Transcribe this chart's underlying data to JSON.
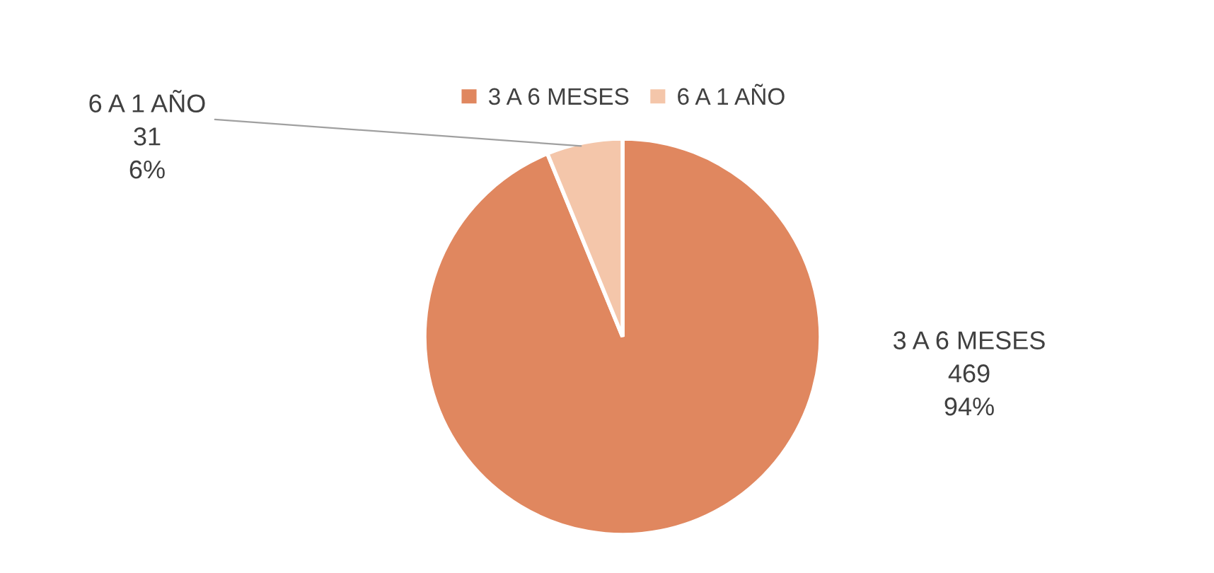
{
  "chart_data": {
    "type": "pie",
    "categories": [
      "3 A 6 MESES",
      "6 A 1 AÑO"
    ],
    "values": [
      469,
      31
    ],
    "colors": [
      "#e0875f",
      "#f4c6aa"
    ],
    "value_labels": [
      "469\n94%",
      "31\n6%"
    ],
    "legend": "top"
  }
}
